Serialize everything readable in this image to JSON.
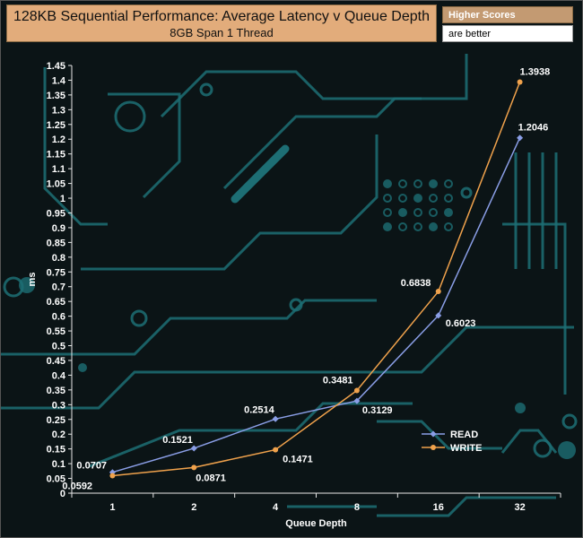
{
  "header": {
    "title": "128KB Sequential Performance: Average Latency v Queue Depth",
    "subtitle": "8GB Span 1 Thread"
  },
  "note": {
    "line1": "Higher Scores",
    "line2": "are better"
  },
  "colors": {
    "read": "#8a9ee6",
    "write": "#f0a24c",
    "axis": "#e8e8e8",
    "label": "#ffffff",
    "circuit": "#1d6e74"
  },
  "chart_data": {
    "type": "line",
    "categories": [
      "1",
      "2",
      "4",
      "8",
      "16",
      "32"
    ],
    "xlabel": "Queue Depth",
    "ylabel": "ms",
    "ylim": [
      0,
      1.45
    ],
    "ystep": 0.05,
    "yticks": [
      "0",
      "0.05",
      "0.1",
      "0.15",
      "0.2",
      "0.25",
      "0.3",
      "0.35",
      "0.4",
      "0.45",
      "0.5",
      "0.55",
      "0.6",
      "0.65",
      "0.7",
      "0.75",
      "0.8",
      "0.85",
      "0.9",
      "0.95",
      "1",
      "1.05",
      "1.1",
      "1.15",
      "1.2",
      "1.25",
      "1.3",
      "1.35",
      "1.4",
      "1.45"
    ],
    "legend_position": "bottom-right",
    "series": [
      {
        "name": "READ",
        "values": [
          0.0707,
          0.1521,
          0.2514,
          0.3129,
          0.6023,
          1.2046
        ],
        "labels": [
          "0.0707",
          "0.1521",
          "0.2514",
          "0.3129",
          "0.6023",
          "1.2046"
        ]
      },
      {
        "name": "WRITE",
        "values": [
          0.0592,
          0.0871,
          0.1471,
          0.3481,
          0.6838,
          1.3938
        ],
        "labels": [
          "0.0592",
          "0.0871",
          "0.1471",
          "0.3481",
          "0.6838",
          "1.3938"
        ]
      }
    ]
  }
}
